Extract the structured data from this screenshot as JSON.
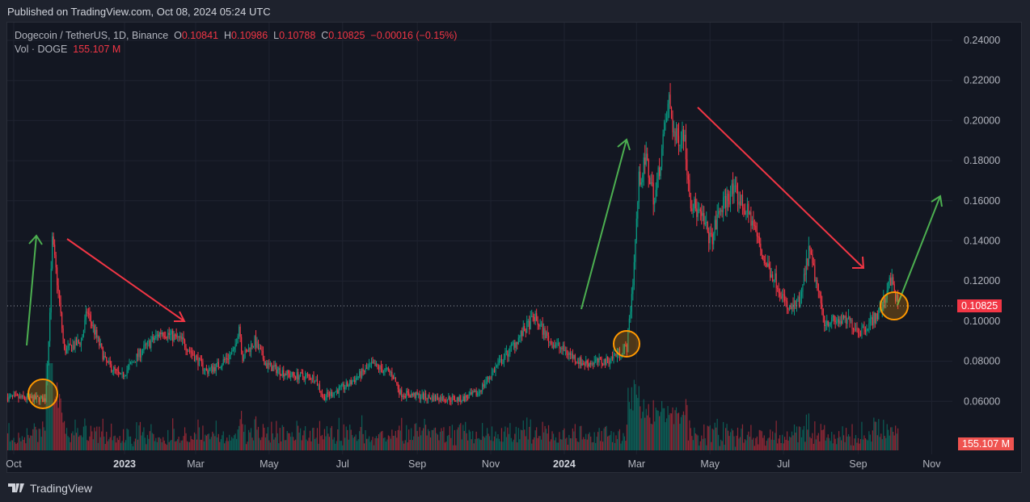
{
  "header": {
    "published": "Published on TradingView.com, Oct 08, 2024 05:24 UTC"
  },
  "legend": {
    "symbol": "Dogecoin / TetherUS, 1D, Binance",
    "o_label": "O",
    "o": "0.10841",
    "h_label": "H",
    "h": "0.10986",
    "l_label": "L",
    "l": "0.10788",
    "c_label": "C",
    "c": "0.10825",
    "change": "−0.00016 (−0.15%)",
    "vol_label": "Vol · DOGE",
    "vol": "155.107 M"
  },
  "price_tag": "0.10825",
  "volume_tag": "155.107 M",
  "footer": {
    "brand": "TradingView"
  },
  "colors": {
    "up": "#089981",
    "down": "#f23645",
    "bg": "#131722",
    "arrow_up": "#4caf50",
    "arrow_down": "#f23645",
    "circle": "#ff9800"
  },
  "chart_data": {
    "type": "candlestick",
    "title": "Dogecoin / TetherUS, 1D, Binance",
    "x_unit": "days since 2022-10-01",
    "y_ticks": [
      "0.24000",
      "0.22000",
      "0.20000",
      "0.18000",
      "0.16000",
      "0.14000",
      "0.12000",
      "0.10000",
      "0.08000",
      "0.06000"
    ],
    "ylim": [
      0.046,
      0.246
    ],
    "x_ticks": [
      {
        "label": "Oct",
        "day": 0,
        "bold": false
      },
      {
        "label": "2023",
        "day": 92,
        "bold": true
      },
      {
        "label": "Mar",
        "day": 151,
        "bold": false
      },
      {
        "label": "May",
        "day": 212,
        "bold": false
      },
      {
        "label": "Jul",
        "day": 273,
        "bold": false
      },
      {
        "label": "Sep",
        "day": 335,
        "bold": false
      },
      {
        "label": "Nov",
        "day": 396,
        "bold": false
      },
      {
        "label": "2024",
        "day": 457,
        "bold": true
      },
      {
        "label": "Mar",
        "day": 517,
        "bold": false
      },
      {
        "label": "May",
        "day": 578,
        "bold": false
      },
      {
        "label": "Jul",
        "day": 639,
        "bold": false
      },
      {
        "label": "Sep",
        "day": 701,
        "bold": false
      },
      {
        "label": "Nov",
        "day": 762,
        "bold": false
      }
    ],
    "last_close": 0.10825,
    "close_anchors": [
      [
        -5,
        0.062
      ],
      [
        26,
        0.061
      ],
      [
        29,
        0.09
      ],
      [
        32,
        0.14
      ],
      [
        36,
        0.12
      ],
      [
        42,
        0.085
      ],
      [
        56,
        0.09
      ],
      [
        61,
        0.105
      ],
      [
        76,
        0.08
      ],
      [
        89,
        0.072
      ],
      [
        106,
        0.085
      ],
      [
        123,
        0.095
      ],
      [
        140,
        0.09
      ],
      [
        160,
        0.075
      ],
      [
        170,
        0.078
      ],
      [
        183,
        0.085
      ],
      [
        187,
        0.098
      ],
      [
        190,
        0.082
      ],
      [
        200,
        0.09
      ],
      [
        210,
        0.078
      ],
      [
        230,
        0.073
      ],
      [
        250,
        0.072
      ],
      [
        257,
        0.062
      ],
      [
        277,
        0.068
      ],
      [
        297,
        0.078
      ],
      [
        314,
        0.074
      ],
      [
        321,
        0.064
      ],
      [
        344,
        0.062
      ],
      [
        371,
        0.061
      ],
      [
        385,
        0.064
      ],
      [
        398,
        0.075
      ],
      [
        411,
        0.085
      ],
      [
        432,
        0.102
      ],
      [
        445,
        0.09
      ],
      [
        458,
        0.085
      ],
      [
        472,
        0.079
      ],
      [
        492,
        0.08
      ],
      [
        509,
        0.087
      ],
      [
        514,
        0.12
      ],
      [
        519,
        0.17
      ],
      [
        525,
        0.18
      ],
      [
        532,
        0.16
      ],
      [
        539,
        0.19
      ],
      [
        544,
        0.21
      ],
      [
        549,
        0.19
      ],
      [
        556,
        0.195
      ],
      [
        562,
        0.16
      ],
      [
        572,
        0.15
      ],
      [
        579,
        0.14
      ],
      [
        586,
        0.155
      ],
      [
        596,
        0.165
      ],
      [
        603,
        0.16
      ],
      [
        613,
        0.15
      ],
      [
        623,
        0.13
      ],
      [
        633,
        0.12
      ],
      [
        643,
        0.105
      ],
      [
        653,
        0.11
      ],
      [
        660,
        0.135
      ],
      [
        666,
        0.12
      ],
      [
        673,
        0.1
      ],
      [
        683,
        0.1
      ],
      [
        693,
        0.1
      ],
      [
        703,
        0.095
      ],
      [
        717,
        0.103
      ],
      [
        723,
        0.11
      ],
      [
        727,
        0.123
      ],
      [
        734,
        0.10825
      ]
    ],
    "annotations": [
      {
        "type": "arrow",
        "color": "up"
      },
      {
        "type": "arrow",
        "color": "down"
      },
      {
        "type": "arrow",
        "color": "up"
      },
      {
        "type": "arrow",
        "color": "down"
      },
      {
        "type": "arrow",
        "color": "up"
      },
      {
        "type": "circle"
      },
      {
        "type": "circle"
      },
      {
        "type": "circle"
      }
    ]
  }
}
